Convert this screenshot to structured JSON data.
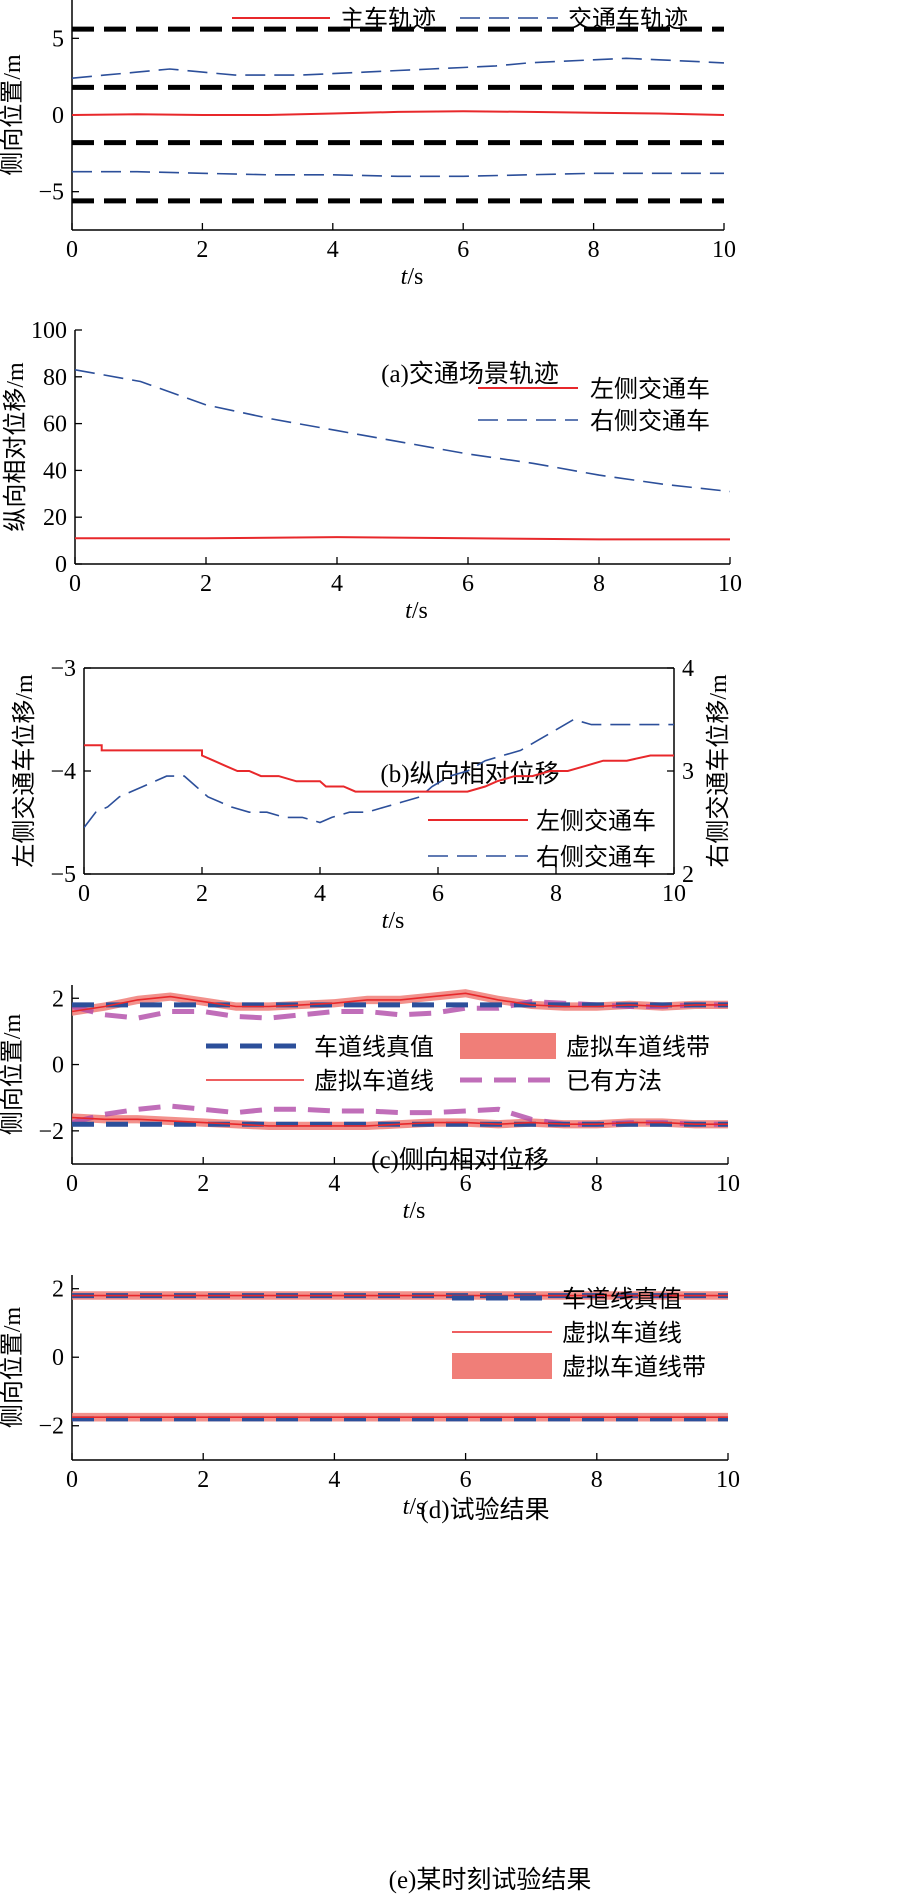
{
  "chart_data": [
    {
      "id": "a",
      "type": "line",
      "caption": "(a)交通场景轨迹",
      "xlabel_italic": "t",
      "xlabel_unit": "/s",
      "ylabel": "侧向位置/m",
      "xlim": [
        0,
        10
      ],
      "ylim": [
        -7.5,
        7.5
      ],
      "xticks": [
        0,
        2,
        4,
        6,
        8,
        10
      ],
      "yticks": [
        -5,
        0,
        5
      ],
      "lane_lines": [
        5.6,
        1.8,
        -1.8,
        -5.6
      ],
      "legend": [
        {
          "label": "主车轨迹",
          "series": "ego"
        },
        {
          "label": "交通车轨迹",
          "series": "traffic"
        }
      ],
      "series": [
        {
          "name": "主车轨迹",
          "key": "ego",
          "style": "red-solid",
          "x": [
            0,
            1,
            2,
            3,
            4,
            5,
            6,
            7,
            8,
            9,
            10
          ],
          "y": [
            0,
            0.05,
            0,
            0,
            0.1,
            0.2,
            0.25,
            0.2,
            0.15,
            0.1,
            0
          ]
        },
        {
          "name": "交通车轨迹",
          "key": "traffic_left",
          "style": "blue-dash",
          "x": [
            0,
            0.5,
            1,
            1.5,
            2,
            2.5,
            3,
            3.5,
            4,
            4.5,
            5,
            5.5,
            6,
            6.5,
            7,
            7.5,
            8,
            8.5,
            9,
            9.5,
            10
          ],
          "y": [
            2.4,
            2.6,
            2.8,
            3.0,
            2.8,
            2.6,
            2.6,
            2.6,
            2.7,
            2.8,
            2.9,
            3.0,
            3.1,
            3.2,
            3.4,
            3.5,
            3.6,
            3.7,
            3.6,
            3.5,
            3.4
          ]
        },
        {
          "name": "交通车轨迹",
          "key": "traffic_right",
          "style": "blue-dash",
          "x": [
            0,
            1,
            2,
            3,
            4,
            5,
            6,
            7,
            8,
            9,
            10
          ],
          "y": [
            -3.7,
            -3.7,
            -3.8,
            -3.9,
            -3.9,
            -4.0,
            -4.0,
            -3.9,
            -3.8,
            -3.8,
            -3.8
          ]
        }
      ]
    },
    {
      "id": "b",
      "type": "line",
      "caption": "(b)纵向相对位移",
      "xlabel_italic": "t",
      "xlabel_unit": "/s",
      "ylabel": "纵向相对位移/m",
      "xlim": [
        0,
        10
      ],
      "ylim": [
        0,
        100
      ],
      "xticks": [
        0,
        2,
        4,
        6,
        8,
        10
      ],
      "yticks": [
        0,
        20,
        40,
        60,
        80,
        100
      ],
      "legend": [
        {
          "label": "左侧交通车",
          "series": "left"
        },
        {
          "label": "右侧交通车",
          "series": "right"
        }
      ],
      "series": [
        {
          "name": "左侧交通车",
          "key": "left",
          "style": "red-solid",
          "x": [
            0,
            2,
            4,
            6,
            8,
            10
          ],
          "y": [
            11,
            11,
            11.5,
            11,
            10.5,
            10.5
          ]
        },
        {
          "name": "右侧交通车",
          "key": "right",
          "style": "blue-dash",
          "x": [
            0,
            1,
            2,
            3,
            4,
            5,
            6,
            7,
            8,
            9,
            10
          ],
          "y": [
            83,
            78,
            68,
            62,
            57,
            52,
            47,
            43,
            38,
            34,
            31
          ]
        }
      ]
    },
    {
      "id": "c",
      "type": "line",
      "caption": "(c)侧向相对位移",
      "xlabel_italic": "t",
      "xlabel_unit": "/s",
      "ylabel": "左侧交通车位移/m",
      "ylabel_right": "右侧交通车位移/m",
      "xlim": [
        0,
        10
      ],
      "ylim": [
        -5,
        -3
      ],
      "ylim_right": [
        2,
        4
      ],
      "xticks": [
        0,
        2,
        4,
        6,
        8,
        10
      ],
      "yticks": [
        -5,
        -4,
        -3
      ],
      "yticks_right": [
        2,
        3,
        4
      ],
      "legend": [
        {
          "label": "左侧交通车",
          "series": "left"
        },
        {
          "label": "右侧交通车",
          "series": "right"
        }
      ],
      "series": [
        {
          "name": "左侧交通车",
          "key": "left",
          "axis": "left",
          "style": "red-solid",
          "x": [
            0,
            0.3,
            0.3,
            1,
            2,
            2,
            2.2,
            2.4,
            2.6,
            2.8,
            3.0,
            3.3,
            3.6,
            4.0,
            4.1,
            4.4,
            4.6,
            5.0,
            5.5,
            6.0,
            6.5,
            6.8,
            7.0,
            7.3,
            7.6,
            7.9,
            8.2,
            8.5,
            8.8,
            9.2,
            9.6,
            10
          ],
          "y": [
            -3.75,
            -3.75,
            -3.8,
            -3.8,
            -3.8,
            -3.85,
            -3.9,
            -3.95,
            -4.0,
            -4.0,
            -4.05,
            -4.05,
            -4.1,
            -4.1,
            -4.15,
            -4.15,
            -4.2,
            -4.2,
            -4.2,
            -4.2,
            -4.2,
            -4.15,
            -4.1,
            -4.05,
            -4.05,
            -4.0,
            -4.0,
            -3.95,
            -3.9,
            -3.9,
            -3.85,
            -3.85
          ]
        },
        {
          "name": "右侧交通车",
          "key": "right",
          "axis": "right",
          "style": "blue-dash",
          "x": [
            0,
            0.2,
            0.4,
            0.6,
            0.8,
            1.0,
            1.2,
            1.4,
            1.7,
            1.9,
            2.1,
            2.3,
            2.5,
            2.8,
            3.1,
            3.4,
            3.7,
            4.0,
            4.2,
            4.5,
            4.8,
            5.1,
            5.4,
            5.7,
            5.9,
            6.2,
            6.5,
            6.8,
            7.1,
            7.4,
            7.7,
            8.0,
            8.3,
            8.6,
            9.0,
            9.5,
            10
          ],
          "y": [
            2.45,
            2.6,
            2.65,
            2.75,
            2.8,
            2.85,
            2.9,
            2.95,
            2.95,
            2.85,
            2.75,
            2.7,
            2.65,
            2.6,
            2.6,
            2.55,
            2.55,
            2.5,
            2.55,
            2.6,
            2.6,
            2.65,
            2.7,
            2.75,
            2.85,
            2.95,
            3.0,
            3.1,
            3.15,
            3.2,
            3.3,
            3.4,
            3.5,
            3.45,
            3.45,
            3.45,
            3.45
          ]
        }
      ]
    },
    {
      "id": "d",
      "type": "line",
      "caption": "(d)试验结果",
      "xlabel_italic": "t",
      "xlabel_unit": "/s",
      "ylabel": "侧向位置/m",
      "xlim": [
        0,
        10
      ],
      "ylim": [
        -3,
        2.4
      ],
      "xticks": [
        0,
        2,
        4,
        6,
        8,
        10
      ],
      "yticks": [
        -2,
        0,
        2
      ],
      "legend": [
        {
          "label": "车道线真值",
          "series": "truth"
        },
        {
          "label": "虚拟车道线带",
          "series": "band"
        },
        {
          "label": "虚拟车道线",
          "series": "virtual"
        },
        {
          "label": "已有方法",
          "series": "existing"
        }
      ],
      "series": [
        {
          "name": "车道线真值",
          "key": "truth_top",
          "style": "truth",
          "x": [
            0,
            10
          ],
          "y": [
            1.8,
            1.8
          ]
        },
        {
          "name": "车道线真值",
          "key": "truth_bot",
          "style": "truth",
          "x": [
            0,
            10
          ],
          "y": [
            -1.8,
            -1.8
          ]
        },
        {
          "name": "虚拟车道线",
          "key": "virtual_top",
          "style": "virtual",
          "x": [
            0,
            0.5,
            1,
            1.5,
            2,
            2.5,
            3,
            3.5,
            4,
            4.5,
            5,
            5.5,
            6,
            6.5,
            7,
            7.5,
            8,
            8.5,
            9,
            9.5,
            10
          ],
          "y": [
            1.6,
            1.75,
            1.95,
            2.05,
            1.9,
            1.75,
            1.75,
            1.8,
            1.85,
            1.95,
            1.95,
            2.05,
            2.15,
            1.95,
            1.8,
            1.75,
            1.75,
            1.8,
            1.75,
            1.8,
            1.8
          ],
          "band_width": 0.25
        },
        {
          "name": "虚拟车道线",
          "key": "virtual_bot",
          "style": "virtual",
          "x": [
            0,
            0.5,
            1,
            1.5,
            2,
            2.5,
            3,
            3.5,
            4,
            4.5,
            5,
            5.5,
            6,
            6.5,
            7,
            7.5,
            8,
            8.5,
            9,
            9.5,
            10
          ],
          "y": [
            -1.6,
            -1.65,
            -1.65,
            -1.7,
            -1.75,
            -1.8,
            -1.85,
            -1.85,
            -1.85,
            -1.85,
            -1.8,
            -1.75,
            -1.75,
            -1.8,
            -1.75,
            -1.8,
            -1.8,
            -1.75,
            -1.75,
            -1.8,
            -1.8
          ],
          "band_width": 0.25
        },
        {
          "name": "已有方法",
          "key": "existing_top",
          "style": "existing",
          "x": [
            0,
            0.5,
            1,
            1.5,
            2,
            2.5,
            3,
            3.5,
            4,
            4.5,
            5,
            5.5,
            6,
            6.5,
            7,
            7.5,
            8,
            8.5,
            9,
            9.5,
            10
          ],
          "y": [
            1.75,
            1.5,
            1.4,
            1.6,
            1.6,
            1.45,
            1.4,
            1.5,
            1.6,
            1.6,
            1.5,
            1.55,
            1.7,
            1.7,
            1.9,
            1.85,
            1.8,
            1.75,
            1.75,
            1.8,
            1.8
          ]
        },
        {
          "name": "已有方法",
          "key": "existing_bot",
          "style": "existing",
          "x": [
            0,
            0.5,
            1,
            1.5,
            2,
            2.5,
            3,
            3.5,
            4,
            4.5,
            5,
            5.5,
            6,
            6.5,
            7,
            7.5,
            8,
            8.5,
            9,
            9.5,
            10
          ],
          "y": [
            -1.75,
            -1.5,
            -1.35,
            -1.25,
            -1.35,
            -1.45,
            -1.35,
            -1.35,
            -1.4,
            -1.4,
            -1.45,
            -1.45,
            -1.4,
            -1.35,
            -1.65,
            -1.8,
            -1.8,
            -1.75,
            -1.75,
            -1.8,
            -1.8
          ]
        }
      ]
    },
    {
      "id": "e",
      "type": "line",
      "caption": "(e)某时刻试验结果",
      "xlabel_italic": "t",
      "xlabel_unit": "/s",
      "ylabel": "侧向位置/m",
      "xlim": [
        0,
        10
      ],
      "ylim": [
        -3,
        2.4
      ],
      "xticks": [
        0,
        2,
        4,
        6,
        8,
        10
      ],
      "yticks": [
        -2,
        0,
        2
      ],
      "legend": [
        {
          "label": "车道线真值",
          "series": "truth"
        },
        {
          "label": "虚拟车道线",
          "series": "virtual"
        },
        {
          "label": "虚拟车道线带",
          "series": "band"
        }
      ],
      "series": [
        {
          "name": "车道线真值",
          "key": "truth_top",
          "style": "truth",
          "x": [
            0,
            10
          ],
          "y": [
            1.8,
            1.8
          ]
        },
        {
          "name": "车道线真值",
          "key": "truth_bot",
          "style": "truth",
          "x": [
            0,
            10
          ],
          "y": [
            -1.8,
            -1.8
          ]
        },
        {
          "name": "虚拟车道线",
          "key": "virtual_top",
          "style": "virtual",
          "x": [
            0,
            10
          ],
          "y": [
            1.8,
            1.8
          ],
          "band_width": 0.25
        },
        {
          "name": "虚拟车道线",
          "key": "virtual_bot",
          "style": "virtual",
          "x": [
            0,
            10
          ],
          "y": [
            -1.75,
            -1.75
          ],
          "band_width": 0.25
        }
      ]
    }
  ],
  "colors": {
    "red": "#e8282b",
    "blue": "#2c4f9a",
    "band": "#f07e78",
    "purple": "#b04aa8",
    "lane": "#000000"
  }
}
